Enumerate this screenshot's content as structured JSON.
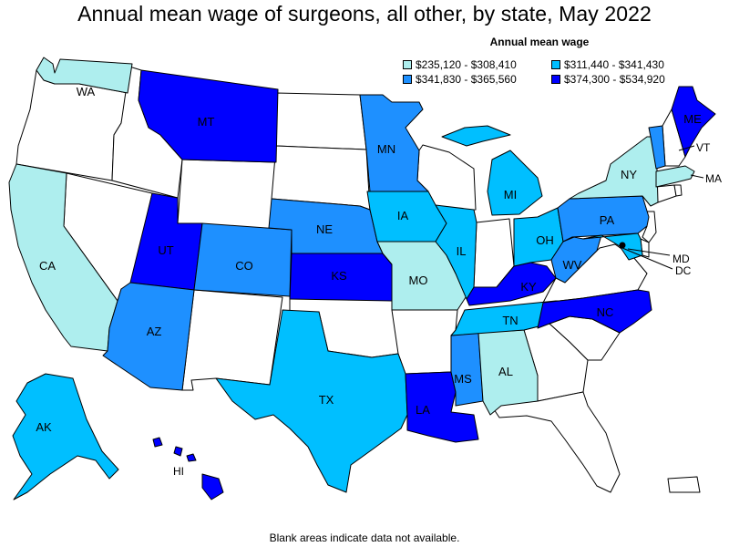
{
  "title": "Annual mean wage of surgeons, all other, by state, May 2022",
  "legend": {
    "title": "Annual mean wage",
    "items": [
      {
        "range": "$235,120 - $308,410",
        "color": "#aeeeee"
      },
      {
        "range": "$311,440 - $341,430",
        "color": "#00bfff"
      },
      {
        "range": "$341,830 - $365,560",
        "color": "#1e90ff"
      },
      {
        "range": "$374,300 - $534,920",
        "color": "#0000ff"
      }
    ]
  },
  "footnote": "Blank areas indicate data not available.",
  "states": {
    "WA": {
      "label": "WA",
      "bin": 0
    },
    "CA": {
      "label": "CA",
      "bin": 0
    },
    "NY": {
      "label": "NY",
      "bin": 0
    },
    "MO": {
      "label": "MO",
      "bin": 0
    },
    "AL": {
      "label": "AL",
      "bin": 0
    },
    "MA": {
      "label": "MA",
      "bin": 0
    },
    "MI": {
      "label": "MI",
      "bin": 1
    },
    "IA": {
      "label": "IA",
      "bin": 1
    },
    "IL": {
      "label": "IL",
      "bin": 1
    },
    "OH": {
      "label": "OH",
      "bin": 1
    },
    "TX": {
      "label": "TX",
      "bin": 1
    },
    "TN": {
      "label": "TN",
      "bin": 1
    },
    "AK": {
      "label": "AK",
      "bin": 1
    },
    "MD": {
      "label": "MD",
      "bin": 1
    },
    "MN": {
      "label": "MN",
      "bin": 2
    },
    "NE": {
      "label": "NE",
      "bin": 2
    },
    "CO": {
      "label": "CO",
      "bin": 2
    },
    "AZ": {
      "label": "AZ",
      "bin": 2
    },
    "PA": {
      "label": "PA",
      "bin": 2
    },
    "WV": {
      "label": "WV",
      "bin": 2
    },
    "MS": {
      "label": "MS",
      "bin": 2
    },
    "VT": {
      "label": "VT",
      "bin": 2
    },
    "MT": {
      "label": "MT",
      "bin": 3
    },
    "UT": {
      "label": "UT",
      "bin": 3
    },
    "KS": {
      "label": "KS",
      "bin": 3
    },
    "KY": {
      "label": "KY",
      "bin": 3
    },
    "NC": {
      "label": "NC",
      "bin": 3
    },
    "LA": {
      "label": "LA",
      "bin": 3
    },
    "ME": {
      "label": "ME",
      "bin": 3
    },
    "HI": {
      "label": "HI",
      "bin": 3
    },
    "DC": {
      "label": "DC",
      "bin": null
    }
  }
}
